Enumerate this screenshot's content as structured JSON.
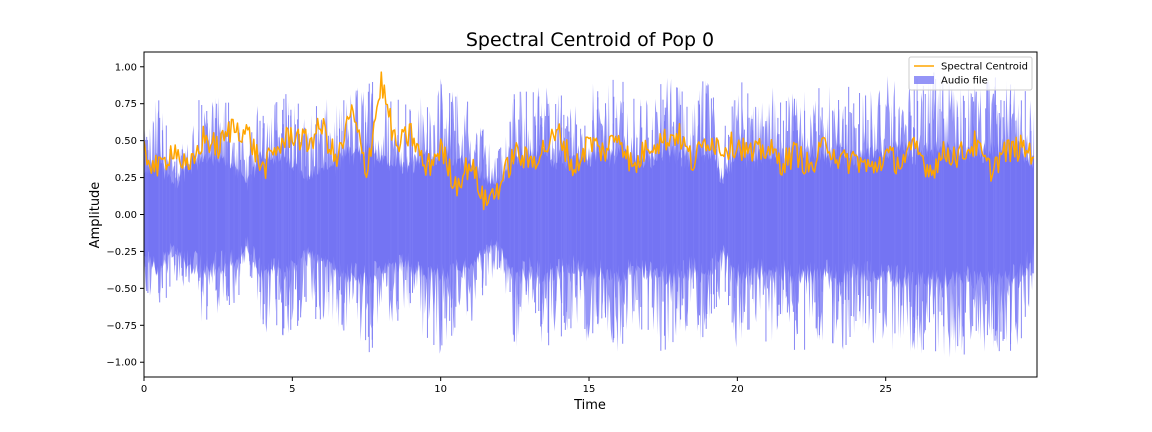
{
  "chart_data": {
    "type": "area",
    "title": "Spectral Centroid of Pop 0",
    "xlabel": "Time",
    "ylabel": "Amplitude",
    "xlim": [
      0,
      30.1
    ],
    "ylim": [
      -1.1,
      1.1
    ],
    "xticks": [
      0,
      5,
      10,
      15,
      20,
      25
    ],
    "yticks": [
      -1.0,
      -0.75,
      -0.5,
      -0.25,
      0.0,
      0.25,
      0.5,
      0.75,
      1.0
    ],
    "legend_position": "top-right",
    "grid": false,
    "series": [
      {
        "name": "Spectral Centroid",
        "kind": "line",
        "color": "#ffa500",
        "x": [
          0.0,
          0.5,
          1.0,
          1.5,
          2.0,
          2.5,
          3.0,
          3.5,
          4.0,
          4.5,
          5.0,
          5.5,
          6.0,
          6.5,
          7.0,
          7.5,
          8.0,
          8.5,
          9.0,
          9.5,
          10.0,
          10.5,
          11.0,
          11.5,
          12.0,
          12.5,
          13.0,
          13.5,
          14.0,
          14.5,
          15.0,
          15.5,
          16.0,
          16.5,
          17.0,
          17.5,
          18.0,
          18.5,
          19.0,
          19.5,
          20.0,
          20.5,
          21.0,
          21.5,
          22.0,
          22.5,
          23.0,
          23.5,
          24.0,
          24.5,
          25.0,
          25.5,
          26.0,
          26.5,
          27.0,
          27.5,
          28.0,
          28.5,
          29.0,
          29.5,
          30.0
        ],
        "y": [
          0.42,
          0.3,
          0.46,
          0.28,
          0.52,
          0.45,
          0.6,
          0.55,
          0.3,
          0.45,
          0.55,
          0.48,
          0.6,
          0.35,
          0.7,
          0.3,
          0.9,
          0.45,
          0.55,
          0.3,
          0.45,
          0.2,
          0.35,
          0.08,
          0.2,
          0.42,
          0.35,
          0.45,
          0.55,
          0.3,
          0.5,
          0.42,
          0.55,
          0.3,
          0.48,
          0.5,
          0.55,
          0.35,
          0.52,
          0.45,
          0.48,
          0.4,
          0.45,
          0.35,
          0.42,
          0.3,
          0.5,
          0.35,
          0.38,
          0.3,
          0.4,
          0.35,
          0.45,
          0.3,
          0.42,
          0.4,
          0.48,
          0.3,
          0.42,
          0.45,
          0.42
        ]
      },
      {
        "name": "Audio file",
        "kind": "envelope",
        "color": "#7b7bf5",
        "x": [
          0.0,
          0.5,
          1.0,
          1.5,
          2.0,
          2.5,
          3.0,
          3.5,
          4.0,
          4.5,
          5.0,
          5.5,
          6.0,
          6.5,
          7.0,
          7.5,
          8.0,
          8.5,
          9.0,
          9.5,
          10.0,
          10.5,
          11.0,
          11.5,
          12.0,
          12.5,
          13.0,
          13.5,
          14.0,
          14.5,
          15.0,
          15.5,
          16.0,
          16.5,
          17.0,
          17.5,
          18.0,
          18.5,
          19.0,
          19.5,
          20.0,
          20.5,
          21.0,
          21.5,
          22.0,
          22.5,
          23.0,
          23.5,
          24.0,
          24.5,
          25.0,
          25.5,
          26.0,
          26.5,
          27.0,
          27.5,
          28.0,
          28.5,
          29.0,
          29.5,
          30.0
        ],
        "upper": [
          0.55,
          0.85,
          0.4,
          0.7,
          0.85,
          0.8,
          0.75,
          0.45,
          0.9,
          0.8,
          0.85,
          0.65,
          0.8,
          0.75,
          0.9,
          0.95,
          0.85,
          0.8,
          0.75,
          0.9,
          0.95,
          0.85,
          0.8,
          0.55,
          0.45,
          0.95,
          0.8,
          0.95,
          0.85,
          0.75,
          0.9,
          0.85,
          0.95,
          0.8,
          0.85,
          0.95,
          0.9,
          0.85,
          0.95,
          0.55,
          0.95,
          0.8,
          0.9,
          0.85,
          0.95,
          0.9,
          0.85,
          0.95,
          0.8,
          0.9,
          0.95,
          0.95,
          0.95,
          0.95,
          1.0,
          0.95,
          0.95,
          0.95,
          0.95,
          0.95,
          0.8
        ],
        "lower": [
          -0.55,
          -0.8,
          -0.4,
          -0.65,
          -0.75,
          -0.7,
          -0.65,
          -0.4,
          -0.9,
          -0.8,
          -0.85,
          -0.6,
          -0.8,
          -0.75,
          -0.9,
          -0.95,
          -0.85,
          -0.8,
          -0.7,
          -0.9,
          -0.95,
          -0.85,
          -0.8,
          -0.5,
          -0.4,
          -0.95,
          -0.8,
          -0.95,
          -0.85,
          -0.75,
          -0.9,
          -0.85,
          -0.95,
          -0.8,
          -0.85,
          -0.95,
          -0.85,
          -0.8,
          -0.95,
          -0.5,
          -0.95,
          -0.75,
          -0.9,
          -0.8,
          -0.95,
          -0.9,
          -0.85,
          -0.95,
          -0.8,
          -0.9,
          -0.95,
          -0.95,
          -0.95,
          -1.0,
          -1.0,
          -0.95,
          -0.95,
          -0.95,
          -0.95,
          -0.95,
          -0.5
        ],
        "rms_upper": [
          0.3,
          0.45,
          0.25,
          0.4,
          0.45,
          0.42,
          0.4,
          0.25,
          0.5,
          0.42,
          0.4,
          0.3,
          0.35,
          0.42,
          0.48,
          0.5,
          0.45,
          0.42,
          0.4,
          0.45,
          0.48,
          0.42,
          0.4,
          0.28,
          0.25,
          0.5,
          0.45,
          0.5,
          0.45,
          0.4,
          0.48,
          0.45,
          0.5,
          0.42,
          0.45,
          0.5,
          0.48,
          0.45,
          0.5,
          0.28,
          0.5,
          0.42,
          0.48,
          0.45,
          0.5,
          0.48,
          0.45,
          0.5,
          0.42,
          0.48,
          0.5,
          0.5,
          0.5,
          0.5,
          0.5,
          0.5,
          0.5,
          0.5,
          0.5,
          0.5,
          0.4
        ]
      }
    ]
  }
}
